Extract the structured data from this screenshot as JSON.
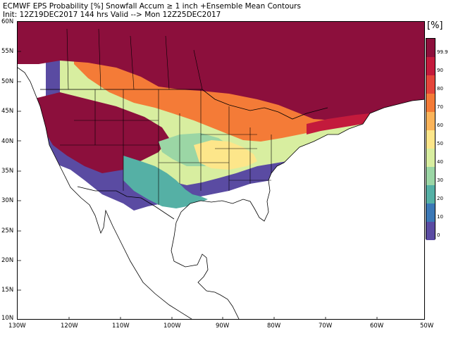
{
  "header": {
    "title": "ECMWF EPS Probability [%] Snowfall Accum ≥ 1 inch   +Ensemble Mean Contours",
    "init": "Init: 12Z19DEC2017   144 hrs Valid --> Mon 12Z25DEC2017"
  },
  "map": {
    "lat_labels": [
      "60N",
      "55N",
      "50N",
      "45N",
      "40N",
      "35N",
      "30N",
      "25N",
      "20N",
      "15N",
      "10N"
    ],
    "lon_labels": [
      "130W",
      "120W",
      "110W",
      "100W",
      "90W",
      "80W",
      "70W",
      "60W",
      "50W"
    ],
    "land_outline_color": "#000000",
    "ocean_color": "#ffffff"
  },
  "legend": {
    "unit": "[%]",
    "levels": [
      {
        "label": "99.9",
        "color": "#8c0f3c"
      },
      {
        "label": "90",
        "color": "#c31a3c"
      },
      {
        "label": "80",
        "color": "#e4453a"
      },
      {
        "label": "70",
        "color": "#f47b37"
      },
      {
        "label": "60",
        "color": "#fbb45a"
      },
      {
        "label": "50",
        "color": "#fde68a"
      },
      {
        "label": "40",
        "color": "#d8eea0"
      },
      {
        "label": "30",
        "color": "#9bd6a5"
      },
      {
        "label": "20",
        "color": "#55b0a5"
      },
      {
        "label": "10",
        "color": "#3b78b6"
      },
      {
        "label": "0",
        "color": "#5a4ba2"
      }
    ]
  }
}
